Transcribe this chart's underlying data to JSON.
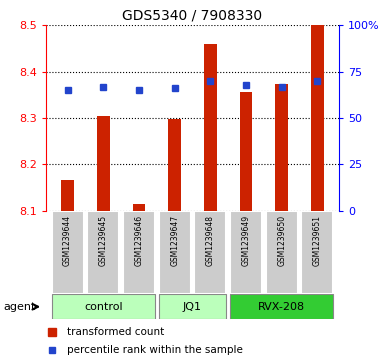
{
  "title": "GDS5340 / 7908330",
  "samples": [
    "GSM1239644",
    "GSM1239645",
    "GSM1239646",
    "GSM1239647",
    "GSM1239648",
    "GSM1239649",
    "GSM1239650",
    "GSM1239651"
  ],
  "transformed_count": [
    8.165,
    8.305,
    8.115,
    8.297,
    8.46,
    8.357,
    8.374,
    8.5
  ],
  "percentile_rank": [
    65,
    67,
    65,
    66,
    70,
    68,
    67,
    70
  ],
  "bar_color": "#cc2200",
  "dot_color": "#2244cc",
  "ylim_left": [
    8.1,
    8.5
  ],
  "ylim_right": [
    0,
    100
  ],
  "yticks_left": [
    8.1,
    8.2,
    8.3,
    8.4,
    8.5
  ],
  "yticks_right": [
    0,
    25,
    50,
    75,
    100
  ],
  "ytick_labels_right": [
    "0",
    "25",
    "50",
    "75",
    "100%"
  ],
  "group_defs": [
    {
      "start": 0,
      "end": 2,
      "label": "control",
      "color": "#bbffbb"
    },
    {
      "start": 3,
      "end": 4,
      "label": "JQ1",
      "color": "#bbffbb"
    },
    {
      "start": 5,
      "end": 7,
      "label": "RVX-208",
      "color": "#33cc33"
    }
  ],
  "agent_label": "agent",
  "legend_red": "transformed count",
  "legend_blue": "percentile rank within the sample",
  "bar_width": 0.35,
  "baseline": 8.1,
  "bg_gray": "#cccccc",
  "plot_bg": "#ffffff"
}
